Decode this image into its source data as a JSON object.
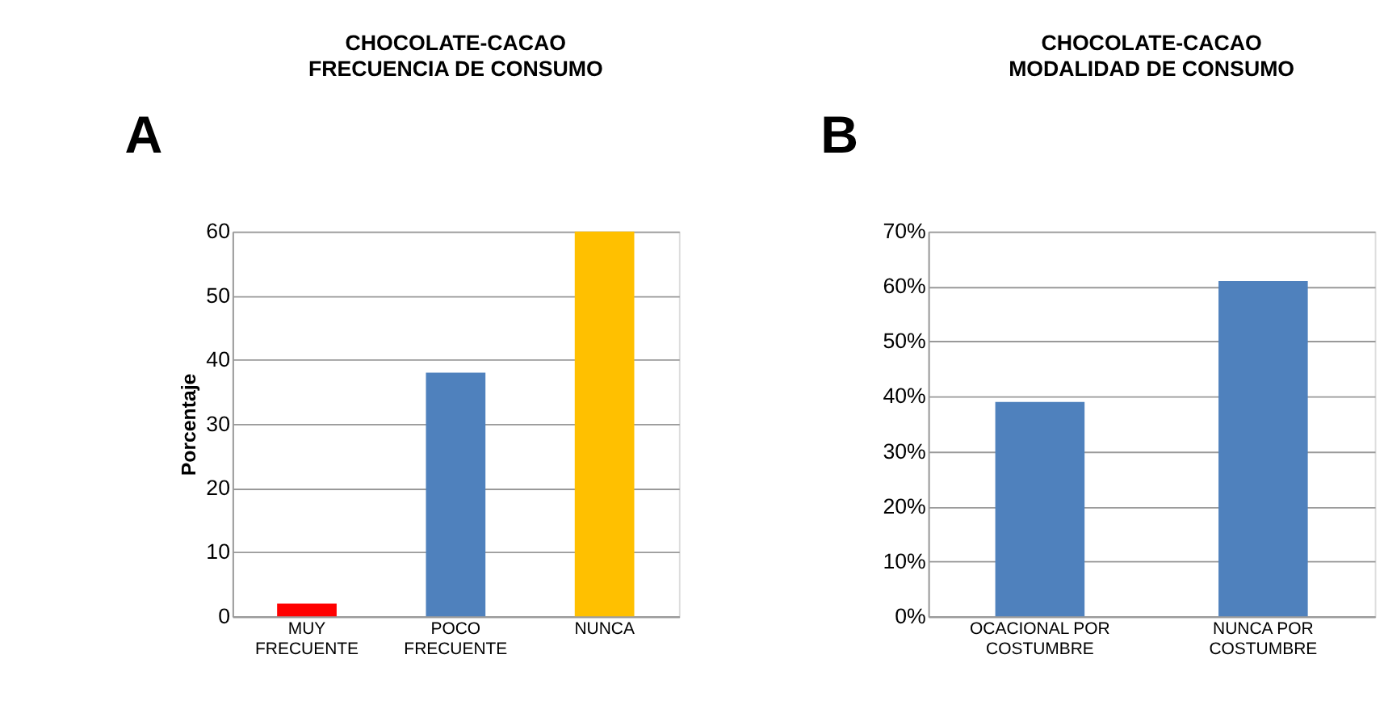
{
  "chart_data": [
    {
      "type": "bar",
      "title": "CHOCOLATE-CACAO",
      "subtitle": "FRECUENCIA DE CONSUMO",
      "ylabel": "Porcentaje",
      "annotations": [
        "A"
      ],
      "categories": [
        "MUY FRECUENTE",
        "POCO FRECUENTE",
        "NUNCA"
      ],
      "values": [
        2,
        38,
        60
      ],
      "colors": [
        "#ff0000",
        "#4f81bd",
        "#ffc000"
      ],
      "ylim": [
        0,
        60
      ],
      "yticks": [
        0,
        10,
        20,
        30,
        40,
        50,
        60
      ],
      "grid": "y"
    },
    {
      "type": "bar",
      "title": "CHOCOLATE-CACAO",
      "subtitle": "MODALIDAD DE CONSUMO",
      "annotations": [
        "B"
      ],
      "categories": [
        "OCACIONAL POR COSTUMBRE",
        "NUNCA POR COSTUMBRE"
      ],
      "values": [
        39,
        61
      ],
      "colors": [
        "#4f81bd",
        "#4f81bd"
      ],
      "ylim": [
        0,
        70
      ],
      "yticks": [
        {
          "value": 0,
          "label": "0%"
        },
        {
          "value": 10,
          "label": "10%"
        },
        {
          "value": 20,
          "label": "20%"
        },
        {
          "value": 30,
          "label": "30%"
        },
        {
          "value": 40,
          "label": "40%"
        },
        {
          "value": 50,
          "label": "50%"
        },
        {
          "value": 60,
          "label": "60%"
        },
        {
          "value": 70,
          "label": "70%"
        }
      ],
      "grid": "y"
    }
  ]
}
